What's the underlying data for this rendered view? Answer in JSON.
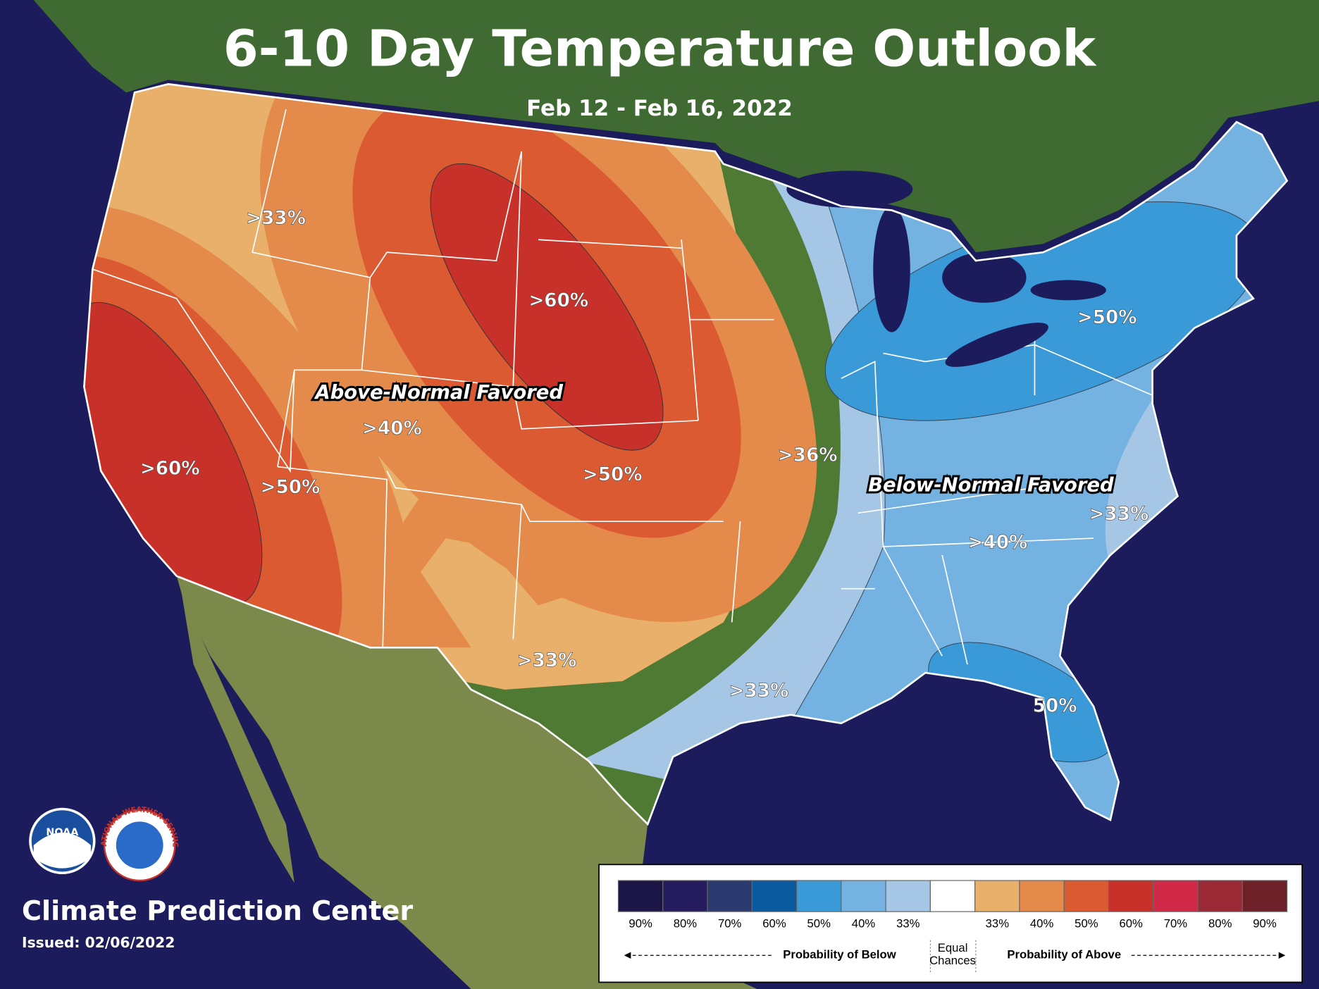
{
  "header": {
    "title": "6-10 Day Temperature Outlook",
    "subtitle": "Feb 12 - Feb 16, 2022"
  },
  "map": {
    "regions": {
      "above": "Above-Normal Favored",
      "below": "Below-Normal Favored"
    },
    "contour_labels": [
      ">33%",
      ">60%",
      ">40%",
      ">60%",
      ">50%",
      ">50%",
      ">36%",
      ">50%",
      ">33%",
      ">40%",
      ">33%",
      ">33%",
      "50%"
    ]
  },
  "footer": {
    "center": "Climate Prediction Center",
    "issued": "Issued: 02/06/2022",
    "noaa": "NOAA",
    "nws": "NATIONAL WEATHER SERVICE"
  },
  "legend": {
    "items": [
      {
        "label": "90%",
        "color": "#1c1646"
      },
      {
        "label": "80%",
        "color": "#241c5c"
      },
      {
        "label": "70%",
        "color": "#2a3a6e"
      },
      {
        "label": "60%",
        "color": "#0a5aa0"
      },
      {
        "label": "50%",
        "color": "#3a9ad8"
      },
      {
        "label": "40%",
        "color": "#74b2e2"
      },
      {
        "label": "33%",
        "color": "#a6c6e6"
      },
      {
        "label": [
          "Equal",
          "Chances"
        ],
        "color": "#ffffff"
      },
      {
        "label": "33%",
        "color": "#e8b06a"
      },
      {
        "label": "40%",
        "color": "#e48a4a"
      },
      {
        "label": "50%",
        "color": "#dc5a32"
      },
      {
        "label": "60%",
        "color": "#c8302a"
      },
      {
        "label": "70%",
        "color": "#d02a48"
      },
      {
        "label": "80%",
        "color": "#9a2a36"
      },
      {
        "label": "90%",
        "color": "#6e2028"
      }
    ],
    "below": "Probability of Below",
    "above": "Probability of Above"
  }
}
